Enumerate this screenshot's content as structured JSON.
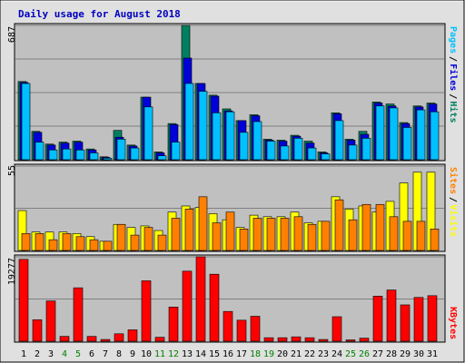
{
  "title": "Daily usage for August 2018",
  "colors": {
    "hits": "#008060",
    "files": "#0000d8",
    "pages": "#00c0ff",
    "visits": "#ffff00",
    "sites": "#ff8000",
    "kbytes": "#ff0000",
    "weekend": "#008000",
    "weekday": "#000000",
    "plot_bg": "#c0c0c0",
    "frame_bg": "#e0e0e0"
  },
  "side_labels": {
    "top": [
      "Pages",
      "/",
      "Files",
      "/",
      "Hits"
    ],
    "middle": [
      "Sites",
      "/",
      "Visits"
    ],
    "bottom": [
      "KBytes"
    ]
  },
  "chart_data": [
    {
      "type": "bar",
      "panel": "hits-files-pages",
      "ymax_label": "687",
      "ylim": [
        0,
        687
      ],
      "categories": [
        "1",
        "2",
        "3",
        "4",
        "5",
        "6",
        "7",
        "8",
        "9",
        "10",
        "11",
        "12",
        "13",
        "14",
        "15",
        "16",
        "17",
        "18",
        "19",
        "20",
        "21",
        "22",
        "23",
        "24",
        "25",
        "26",
        "27",
        "28",
        "29",
        "30",
        "31"
      ],
      "weekend_days": [
        "4",
        "5",
        "11",
        "12",
        "18",
        "19",
        "25",
        "26"
      ],
      "series": [
        {
          "name": "Hits",
          "values": [
            400,
            145,
            80,
            90,
            95,
            55,
            15,
            150,
            75,
            320,
            40,
            185,
            687,
            390,
            330,
            260,
            200,
            230,
            105,
            100,
            125,
            95,
            40,
            240,
            105,
            145,
            295,
            285,
            190,
            275,
            290
          ]
        },
        {
          "name": "Files",
          "values": [
            395,
            140,
            75,
            85,
            90,
            50,
            12,
            115,
            70,
            320,
            35,
            180,
            520,
            390,
            325,
            250,
            200,
            225,
            100,
            95,
            120,
            85,
            35,
            235,
            100,
            130,
            290,
            275,
            185,
            270,
            285
          ]
        },
        {
          "name": "Pages",
          "values": [
            390,
            90,
            50,
            55,
            50,
            35,
            8,
            105,
            60,
            270,
            20,
            90,
            390,
            350,
            240,
            245,
            140,
            195,
            95,
            70,
            110,
            60,
            30,
            200,
            75,
            110,
            275,
            265,
            165,
            255,
            245
          ]
        }
      ]
    },
    {
      "type": "bar",
      "panel": "sites-visits",
      "ymax_label": "55",
      "ylim": [
        0,
        55
      ],
      "categories": [
        "1",
        "2",
        "3",
        "4",
        "5",
        "6",
        "7",
        "8",
        "9",
        "10",
        "11",
        "12",
        "13",
        "14",
        "15",
        "16",
        "17",
        "18",
        "19",
        "20",
        "21",
        "22",
        "23",
        "24",
        "25",
        "26",
        "27",
        "28",
        "29",
        "30",
        "31"
      ],
      "weekend_days": [
        "4",
        "5",
        "11",
        "12",
        "18",
        "19",
        "25",
        "26"
      ],
      "series": [
        {
          "name": "Visits",
          "values": [
            26,
            12,
            12,
            12,
            11,
            9,
            6,
            17,
            15,
            16,
            13,
            25,
            29,
            28,
            24,
            20,
            15,
            23,
            22,
            22,
            25,
            18,
            19,
            35,
            27,
            29,
            25,
            32,
            44,
            51,
            51
          ]
        },
        {
          "name": "Sites",
          "values": [
            11,
            11,
            7,
            11,
            9,
            7,
            6,
            17,
            10,
            15,
            10,
            21,
            27,
            35,
            18,
            25,
            14,
            21,
            21,
            21,
            22,
            17,
            19,
            33,
            20,
            30,
            30,
            22,
            19,
            19,
            14
          ]
        }
      ]
    },
    {
      "type": "bar",
      "panel": "kbytes",
      "ymax_label": "19277",
      "ylim": [
        0,
        19277
      ],
      "categories": [
        "1",
        "2",
        "3",
        "4",
        "5",
        "6",
        "7",
        "8",
        "9",
        "10",
        "11",
        "12",
        "13",
        "14",
        "15",
        "16",
        "17",
        "18",
        "19",
        "20",
        "21",
        "22",
        "23",
        "24",
        "25",
        "26",
        "27",
        "28",
        "29",
        "30",
        "31"
      ],
      "weekend_days": [
        "4",
        "5",
        "11",
        "12",
        "18",
        "19",
        "25",
        "26"
      ],
      "series": [
        {
          "name": "KBytes",
          "values": [
            18700,
            4900,
            9200,
            1100,
            12200,
            1100,
            400,
            1700,
            2600,
            13800,
            900,
            7800,
            16000,
            19277,
            15300,
            6800,
            4800,
            5700,
            800,
            800,
            1000,
            800,
            400,
            5600,
            300,
            700,
            10300,
            11700,
            8300,
            10000,
            10400
          ]
        }
      ]
    }
  ]
}
